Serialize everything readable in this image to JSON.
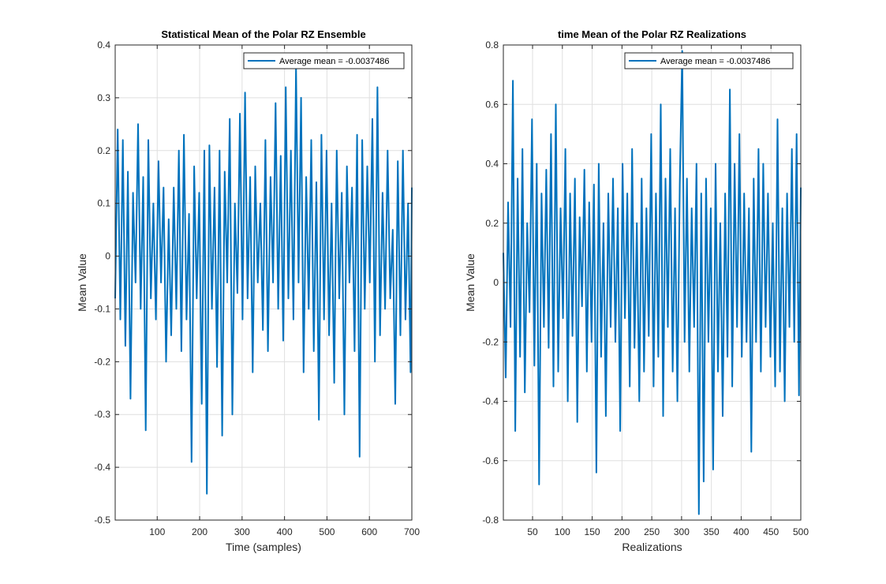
{
  "chart_data": [
    {
      "type": "line",
      "title": "Statistical Mean of the Polar RZ Ensemble",
      "xlabel": "Time (samples)",
      "ylabel": "Mean Value",
      "xlim": [
        1,
        700
      ],
      "ylim": [
        -0.5,
        0.4
      ],
      "xticks": [
        100,
        200,
        300,
        400,
        500,
        600,
        700
      ],
      "yticks": [
        -0.5,
        -0.4,
        -0.3,
        -0.2,
        -0.1,
        0,
        0.1,
        0.2,
        0.3,
        0.4
      ],
      "yticklabels": [
        "-0.5",
        "-0.4",
        "-0.3",
        "-0.2",
        "-0.1",
        "0",
        "0.1",
        "0.2",
        "0.3",
        "0.4"
      ],
      "grid": true,
      "legend": {
        "placement": "top-right",
        "entries": [
          "Average mean = -0.0037486"
        ]
      },
      "series": [
        {
          "name": "Average mean = -0.0037486",
          "color": "#0072BD",
          "x": [
            1,
            7,
            13,
            19,
            25,
            31,
            37,
            43,
            49,
            55,
            61,
            67,
            73,
            79,
            85,
            91,
            97,
            103,
            109,
            115,
            121,
            127,
            133,
            139,
            145,
            151,
            157,
            163,
            169,
            175,
            181,
            187,
            193,
            199,
            205,
            211,
            217,
            223,
            229,
            235,
            241,
            247,
            253,
            259,
            265,
            271,
            277,
            283,
            289,
            295,
            301,
            307,
            313,
            319,
            325,
            331,
            337,
            343,
            349,
            355,
            361,
            367,
            373,
            379,
            385,
            391,
            397,
            403,
            409,
            415,
            421,
            427,
            433,
            439,
            445,
            451,
            457,
            463,
            469,
            475,
            481,
            487,
            493,
            499,
            505,
            511,
            517,
            523,
            529,
            535,
            541,
            547,
            553,
            559,
            565,
            571,
            577,
            583,
            589,
            595,
            601,
            607,
            613,
            619,
            625,
            631,
            637,
            643,
            649,
            655,
            661,
            667,
            673,
            679,
            685,
            691,
            697,
            700
          ],
          "y": [
            -0.08,
            0.24,
            -0.12,
            0.22,
            -0.17,
            0.16,
            -0.27,
            0.12,
            -0.05,
            0.25,
            -0.1,
            0.15,
            -0.33,
            0.22,
            -0.08,
            0.1,
            -0.12,
            0.18,
            -0.05,
            0.13,
            -0.2,
            0.07,
            -0.15,
            0.13,
            -0.1,
            0.2,
            -0.18,
            0.23,
            -0.12,
            0.08,
            -0.39,
            0.17,
            -0.08,
            0.12,
            -0.28,
            0.2,
            -0.45,
            0.21,
            -0.1,
            0.13,
            -0.21,
            0.2,
            -0.34,
            0.16,
            -0.05,
            0.26,
            -0.3,
            0.1,
            -0.07,
            0.27,
            -0.12,
            0.31,
            -0.08,
            0.15,
            -0.22,
            0.17,
            -0.05,
            0.1,
            -0.14,
            0.22,
            -0.18,
            0.15,
            -0.05,
            0.29,
            -0.1,
            0.19,
            -0.16,
            0.32,
            -0.08,
            0.2,
            -0.12,
            0.36,
            -0.05,
            0.3,
            -0.22,
            0.15,
            -0.1,
            0.22,
            -0.18,
            0.14,
            -0.31,
            0.23,
            -0.12,
            0.2,
            -0.15,
            0.1,
            -0.24,
            0.2,
            -0.08,
            0.12,
            -0.3,
            0.17,
            -0.05,
            0.13,
            -0.18,
            0.23,
            -0.38,
            0.22,
            -0.1,
            0.17,
            -0.05,
            0.26,
            -0.2,
            0.32,
            -0.15,
            0.12,
            -0.1,
            0.2,
            -0.08,
            0.05,
            -0.28,
            0.18,
            -0.15,
            0.2,
            -0.12,
            0.1,
            -0.22,
            0.13
          ]
        }
      ]
    },
    {
      "type": "line",
      "title": "time Mean of the Polar RZ Realizations",
      "xlabel": "Realizations",
      "ylabel": "Mean Value",
      "xlim": [
        1,
        500
      ],
      "ylim": [
        -0.8,
        0.8
      ],
      "xticks": [
        50,
        100,
        150,
        200,
        250,
        300,
        350,
        400,
        450,
        500
      ],
      "yticks": [
        -0.8,
        -0.6,
        -0.4,
        -0.2,
        0,
        0.2,
        0.4,
        0.6,
        0.8
      ],
      "yticklabels": [
        "-0.8",
        "-0.6",
        "-0.4",
        "-0.2",
        "0",
        "0.2",
        "0.4",
        "0.6",
        "0.8"
      ],
      "grid": true,
      "legend": {
        "placement": "top-right",
        "entries": [
          "Average mean = -0.0037486"
        ]
      },
      "series": [
        {
          "name": "Average mean = -0.0037486",
          "color": "#0072BD",
          "x": [
            1,
            5,
            9,
            13,
            17,
            21,
            25,
            29,
            33,
            37,
            41,
            45,
            49,
            53,
            57,
            61,
            65,
            69,
            73,
            77,
            81,
            85,
            89,
            93,
            97,
            101,
            105,
            109,
            113,
            117,
            121,
            125,
            129,
            133,
            137,
            141,
            145,
            149,
            153,
            157,
            161,
            165,
            169,
            173,
            177,
            181,
            185,
            189,
            193,
            197,
            201,
            205,
            209,
            213,
            217,
            221,
            225,
            229,
            233,
            237,
            241,
            245,
            249,
            253,
            257,
            261,
            265,
            269,
            273,
            277,
            281,
            285,
            289,
            293,
            297,
            301,
            305,
            309,
            313,
            317,
            321,
            325,
            329,
            333,
            337,
            341,
            345,
            349,
            353,
            357,
            361,
            365,
            369,
            373,
            377,
            381,
            385,
            389,
            393,
            397,
            401,
            405,
            409,
            413,
            417,
            421,
            425,
            429,
            433,
            437,
            441,
            445,
            449,
            453,
            457,
            461,
            465,
            469,
            473,
            477,
            481,
            485,
            489,
            493,
            497,
            500
          ],
          "y": [
            0.1,
            -0.32,
            0.27,
            -0.15,
            0.68,
            -0.5,
            0.35,
            -0.25,
            0.45,
            -0.37,
            0.2,
            -0.1,
            0.55,
            -0.28,
            0.4,
            -0.68,
            0.3,
            -0.15,
            0.38,
            -0.22,
            0.5,
            -0.35,
            0.6,
            -0.3,
            0.25,
            -0.12,
            0.45,
            -0.4,
            0.3,
            -0.18,
            0.35,
            -0.47,
            0.22,
            -0.08,
            0.38,
            -0.3,
            0.27,
            -0.2,
            0.33,
            -0.64,
            0.4,
            -0.25,
            0.2,
            -0.45,
            0.3,
            -0.15,
            0.35,
            -0.2,
            0.25,
            -0.5,
            0.4,
            -0.12,
            0.3,
            -0.35,
            0.45,
            -0.22,
            0.2,
            -0.4,
            0.35,
            -0.3,
            0.25,
            -0.18,
            0.5,
            -0.35,
            0.3,
            -0.25,
            0.6,
            -0.45,
            0.35,
            -0.15,
            0.45,
            -0.3,
            0.25,
            -0.4,
            0.33,
            0.78,
            -0.2,
            0.35,
            -0.3,
            0.25,
            -0.15,
            0.4,
            -0.78,
            0.3,
            -0.67,
            0.35,
            -0.2,
            0.25,
            -0.63,
            0.4,
            -0.3,
            0.2,
            -0.45,
            0.3,
            -0.25,
            0.65,
            -0.35,
            0.4,
            -0.15,
            0.5,
            -0.25,
            0.3,
            -0.2,
            0.25,
            -0.57,
            0.35,
            -0.2,
            0.45,
            -0.3,
            0.4,
            -0.15,
            0.3,
            -0.25,
            0.2,
            -0.35,
            0.55,
            -0.3,
            0.25,
            -0.4,
            0.3,
            -0.15,
            0.45,
            -0.2,
            0.5,
            -0.38,
            0.32
          ]
        }
      ]
    }
  ]
}
